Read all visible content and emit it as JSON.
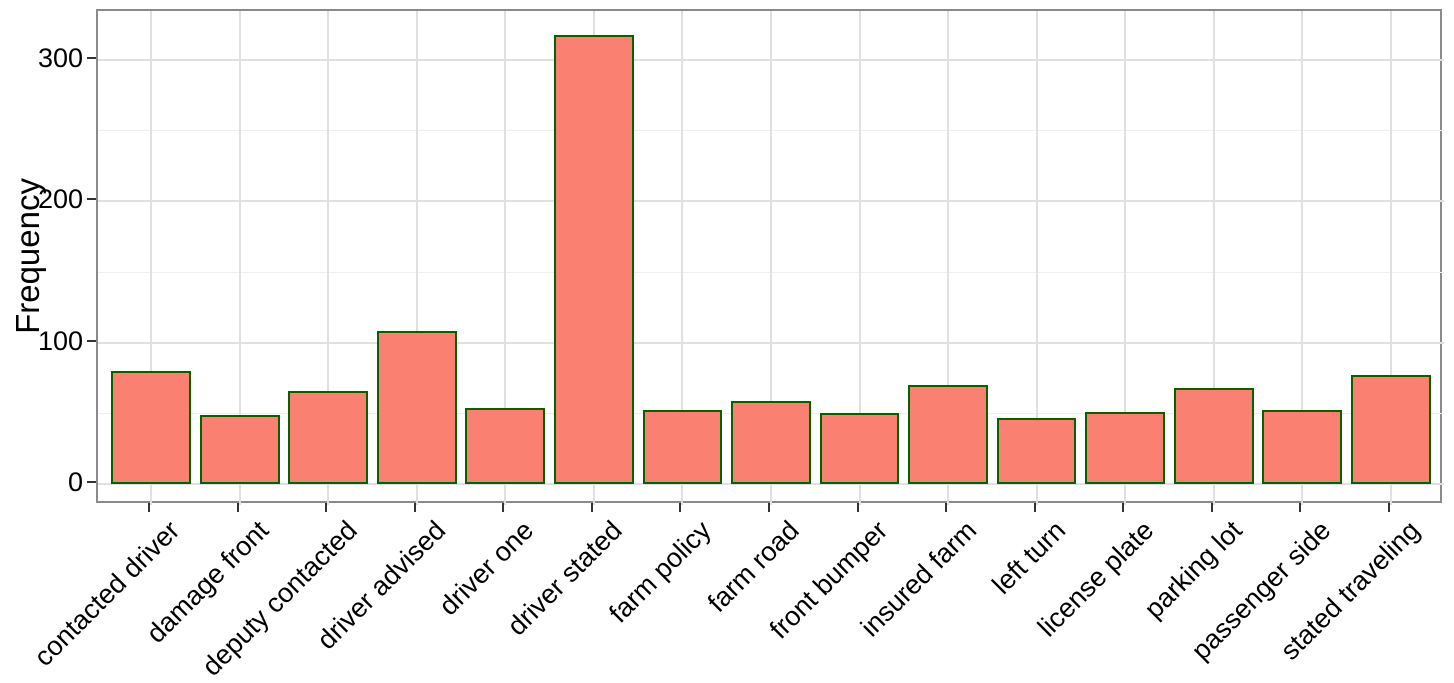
{
  "chart_data": {
    "type": "bar",
    "title": "",
    "xlabel": "",
    "ylabel": "Frequency",
    "categories": [
      "contacted driver",
      "damage front",
      "deputy contacted",
      "driver advised",
      "driver one",
      "driver stated",
      "farm policy",
      "farm road",
      "front bumper",
      "insured farm",
      "left turn",
      "license plate",
      "parking lot",
      "passenger side",
      "stated traveling"
    ],
    "values": [
      80,
      49,
      66,
      108,
      54,
      317,
      52,
      59,
      50,
      70,
      47,
      51,
      68,
      52,
      77
    ],
    "ylim": [
      -14.8,
      334.3
    ],
    "yticks": [
      0,
      100,
      200,
      300
    ],
    "ytick_labels": [
      "0",
      "100",
      "200",
      "300"
    ],
    "minor_yticks": [
      50,
      150,
      250
    ],
    "grid": "major-and-minor, vertical major at each category center",
    "legend_position": "none",
    "colors": {
      "bar_fill": "#FA8072",
      "bar_border": "#006400",
      "panel_border": "#8A8A8A",
      "grid_major": "#E0E0E0",
      "grid_minor": "#EFEFEF",
      "tick_mark": "#333333",
      "text": "#000000",
      "background": "#FFFFFF"
    }
  }
}
